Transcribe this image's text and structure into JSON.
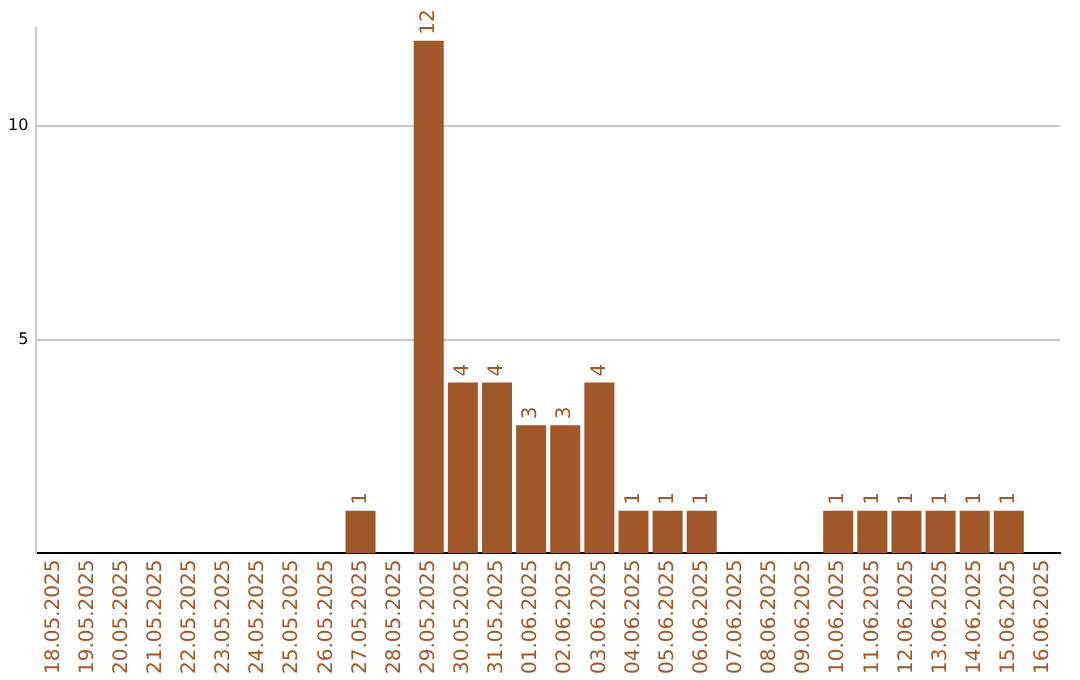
{
  "chart_data": {
    "type": "bar",
    "categories": [
      "18.05.2025",
      "19.05.2025",
      "20.05.2025",
      "21.05.2025",
      "22.05.2025",
      "23.05.2025",
      "24.05.2025",
      "25.05.2025",
      "26.05.2025",
      "27.05.2025",
      "28.05.2025",
      "29.05.2025",
      "30.05.2025",
      "31.05.2025",
      "01.06.2025",
      "02.06.2025",
      "03.06.2025",
      "04.06.2025",
      "05.06.2025",
      "06.06.2025",
      "07.06.2025",
      "08.06.2025",
      "09.06.2025",
      "10.06.2025",
      "11.06.2025",
      "12.06.2025",
      "13.06.2025",
      "14.06.2025",
      "15.06.2025",
      "16.06.2025"
    ],
    "values": [
      null,
      null,
      null,
      null,
      null,
      null,
      null,
      null,
      null,
      1,
      null,
      12,
      4,
      4,
      3,
      3,
      4,
      1,
      1,
      1,
      null,
      null,
      null,
      1,
      1,
      1,
      1,
      1,
      1,
      null
    ],
    "color": "#a0582b",
    "ylim": [
      0,
      12.3
    ],
    "yticks": [
      5,
      10
    ],
    "grid": "y",
    "data_labels": true,
    "legend": false
  }
}
